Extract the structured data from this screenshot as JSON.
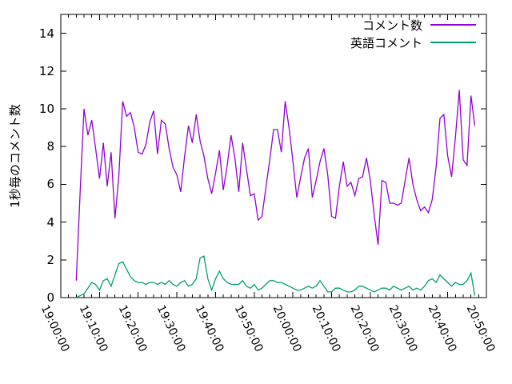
{
  "chart_data": {
    "type": "line",
    "title": "",
    "xlabel": "",
    "ylabel": "1秒毎のコメント数",
    "grid": false,
    "legend_position": "top-right-inside",
    "ylim": [
      0,
      15
    ],
    "y_tick_values": [
      0,
      2,
      4,
      6,
      8,
      10,
      12,
      14
    ],
    "x_tick_labels": [
      "19:00:00",
      "19:10:00",
      "19:20:00",
      "19:30:00",
      "19:40:00",
      "19:50:00",
      "20:00:00",
      "20:10:00",
      "20:20:00",
      "20:30:00",
      "20:40:00",
      "20:50:00"
    ],
    "x_minor_tick_minutes": 2,
    "x_range": [
      "19:00:00",
      "20:50:00"
    ],
    "times": [
      "19:04:00",
      "19:05:00",
      "19:06:00",
      "19:07:00",
      "19:08:00",
      "19:09:00",
      "19:10:00",
      "19:11:00",
      "19:12:00",
      "19:13:00",
      "19:14:00",
      "19:15:00",
      "19:16:00",
      "19:17:00",
      "19:18:00",
      "19:19:00",
      "19:20:00",
      "19:21:00",
      "19:22:00",
      "19:23:00",
      "19:24:00",
      "19:25:00",
      "19:26:00",
      "19:27:00",
      "19:28:00",
      "19:29:00",
      "19:30:00",
      "19:31:00",
      "19:32:00",
      "19:33:00",
      "19:34:00",
      "19:35:00",
      "19:36:00",
      "19:37:00",
      "19:38:00",
      "19:39:00",
      "19:40:00",
      "19:41:00",
      "19:42:00",
      "19:43:00",
      "19:44:00",
      "19:45:00",
      "19:46:00",
      "19:47:00",
      "19:48:00",
      "19:49:00",
      "19:50:00",
      "19:51:00",
      "19:52:00",
      "19:53:00",
      "19:54:00",
      "19:55:00",
      "19:56:00",
      "19:57:00",
      "19:58:00",
      "19:59:00",
      "20:00:00",
      "20:01:00",
      "20:02:00",
      "20:03:00",
      "20:04:00",
      "20:05:00",
      "20:06:00",
      "20:07:00",
      "20:08:00",
      "20:09:00",
      "20:10:00",
      "20:11:00",
      "20:12:00",
      "20:13:00",
      "20:14:00",
      "20:15:00",
      "20:16:00",
      "20:17:00",
      "20:18:00",
      "20:19:00",
      "20:20:00",
      "20:21:00",
      "20:22:00",
      "20:23:00",
      "20:24:00",
      "20:25:00",
      "20:26:00",
      "20:27:00",
      "20:28:00",
      "20:29:00",
      "20:30:00",
      "20:31:00",
      "20:32:00",
      "20:33:00",
      "20:34:00",
      "20:35:00",
      "20:36:00",
      "20:37:00",
      "20:38:00",
      "20:39:00",
      "20:40:00",
      "20:41:00",
      "20:42:00",
      "20:43:00",
      "20:44:00",
      "20:45:00",
      "20:46:00",
      "20:47:00"
    ],
    "series": [
      {
        "name": "コメント数",
        "color": "#9400d3",
        "values": [
          0.9,
          5.6,
          10.0,
          8.6,
          9.4,
          7.9,
          6.3,
          8.2,
          5.9,
          7.7,
          4.2,
          6.4,
          10.4,
          9.6,
          9.8,
          9.0,
          7.7,
          7.6,
          8.1,
          9.3,
          9.9,
          7.6,
          9.4,
          9.2,
          7.9,
          6.9,
          6.5,
          5.6,
          7.5,
          9.1,
          8.2,
          9.7,
          8.3,
          7.5,
          6.3,
          5.5,
          6.6,
          7.8,
          5.7,
          7.0,
          8.6,
          7.4,
          5.6,
          8.2,
          6.8,
          5.4,
          5.5,
          4.1,
          4.3,
          5.8,
          7.3,
          8.9,
          8.9,
          7.7,
          10.4,
          9.0,
          7.2,
          5.3,
          6.4,
          7.4,
          7.9,
          5.3,
          6.2,
          7.2,
          7.9,
          6.5,
          4.3,
          4.2,
          5.9,
          7.2,
          5.9,
          6.1,
          5.4,
          6.3,
          6.4,
          7.4,
          6.2,
          4.4,
          2.8,
          6.2,
          6.1,
          5.0,
          5.0,
          4.9,
          5.0,
          6.2,
          7.4,
          6.0,
          5.2,
          4.6,
          4.8,
          4.5,
          5.2,
          6.9,
          9.5,
          9.7,
          7.5,
          6.4,
          8.5,
          11.0,
          7.3,
          7.0,
          10.7,
          9.1
        ]
      },
      {
        "name": "英語コメント",
        "color": "#009e73",
        "values": [
          0.0,
          0.1,
          0.2,
          0.5,
          0.8,
          0.7,
          0.4,
          0.9,
          1.0,
          0.6,
          1.2,
          1.8,
          1.9,
          1.5,
          1.1,
          0.9,
          0.8,
          0.8,
          0.7,
          0.8,
          0.8,
          0.7,
          0.8,
          0.7,
          0.9,
          0.7,
          0.6,
          0.8,
          0.9,
          0.6,
          0.7,
          1.0,
          2.1,
          2.2,
          1.0,
          0.4,
          1.0,
          1.4,
          1.0,
          0.8,
          0.7,
          0.7,
          0.7,
          0.9,
          0.6,
          0.5,
          0.7,
          0.4,
          0.5,
          0.7,
          0.9,
          0.9,
          0.8,
          0.8,
          0.7,
          0.6,
          0.5,
          0.4,
          0.4,
          0.5,
          0.6,
          0.5,
          0.6,
          0.9,
          0.6,
          0.3,
          0.3,
          0.5,
          0.5,
          0.4,
          0.3,
          0.3,
          0.4,
          0.6,
          0.6,
          0.5,
          0.4,
          0.3,
          0.4,
          0.5,
          0.5,
          0.4,
          0.6,
          0.5,
          0.4,
          0.5,
          0.6,
          0.4,
          0.5,
          0.4,
          0.6,
          0.9,
          1.0,
          0.8,
          1.2,
          1.0,
          0.8,
          0.6,
          0.8,
          0.7,
          0.7,
          0.9,
          1.3,
          0.1
        ]
      }
    ]
  }
}
